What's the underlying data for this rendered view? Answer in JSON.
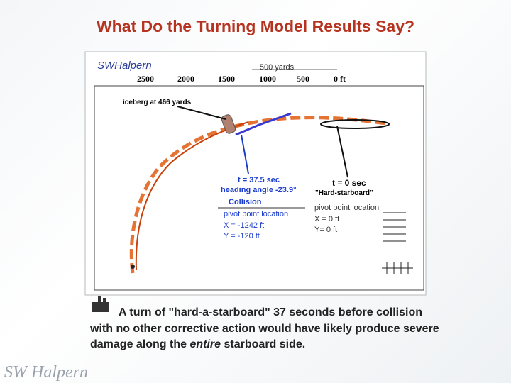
{
  "title": "What Do the Turning Model Results Say?",
  "diagram": {
    "logo": "SWHalpern",
    "scale_label": "500 yards",
    "ruler": [
      "2500",
      "2000",
      "1500",
      "1000",
      "500",
      "0 ft"
    ],
    "iceberg": "iceberg at 466 yards",
    "collision": {
      "time": "t = 37.5 sec",
      "heading": "heading angle -23.9°",
      "label": "Collision",
      "pivot": "pivot point location",
      "x": "X = -1242 ft",
      "y": "Y = -120 ft"
    },
    "start": {
      "time": "t = 0 sec",
      "label": "\"Hard-starboard\"",
      "pivot": "pivot point location",
      "x": "X = 0 ft",
      "y": "Y= 0 ft"
    }
  },
  "caption": {
    "part1": "A turn of \"hard-a-starboard\" 37 seconds before collision with no other corrective action would have likely produce severe damage along the",
    "emphasis": "entire",
    "part2": "starboard side."
  },
  "footer_logo": "SW Halpern"
}
